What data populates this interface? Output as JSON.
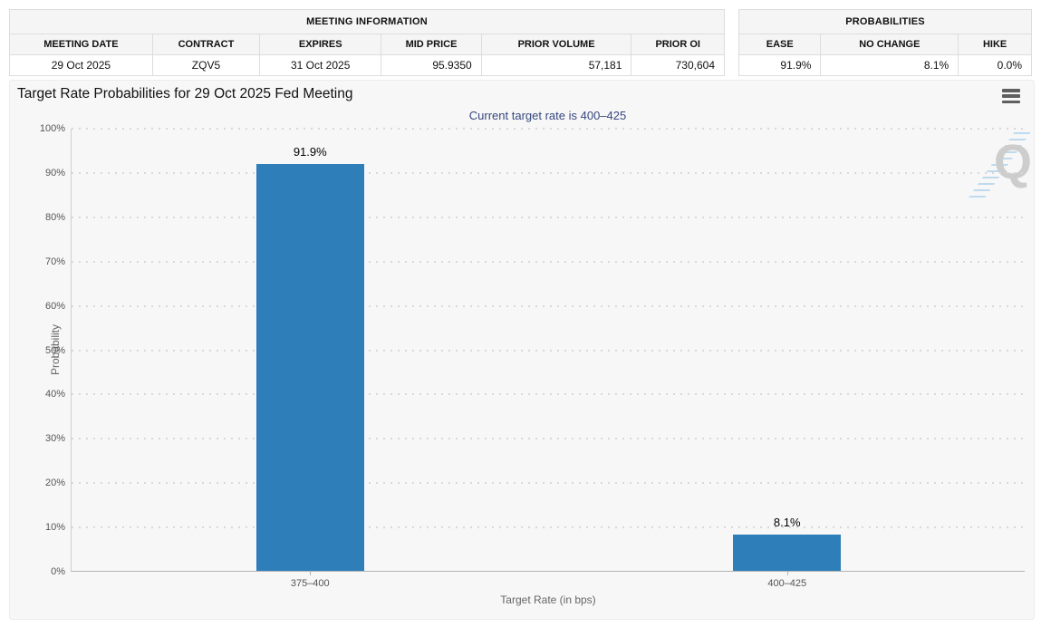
{
  "meeting_information": {
    "title": "MEETING INFORMATION",
    "columns": [
      "MEETING DATE",
      "CONTRACT",
      "EXPIRES",
      "MID PRICE",
      "PRIOR VOLUME",
      "PRIOR OI"
    ],
    "row": {
      "meeting_date": "29 Oct 2025",
      "contract": "ZQV5",
      "expires": "31 Oct 2025",
      "mid_price": "95.9350",
      "prior_volume": "57,181",
      "prior_oi": "730,604"
    }
  },
  "probabilities": {
    "title": "PROBABILITIES",
    "columns": [
      "EASE",
      "NO CHANGE",
      "HIKE"
    ],
    "row": {
      "ease": "91.9%",
      "no_change": "8.1%",
      "hike": "0.0%"
    }
  },
  "chart_data": {
    "type": "bar",
    "title": "Target Rate Probabilities for 29 Oct 2025 Fed Meeting",
    "subtitle": "Current target rate is 400–425",
    "categories": [
      "375–400",
      "400–425"
    ],
    "values": [
      91.9,
      8.1
    ],
    "value_labels": [
      "91.9%",
      "8.1%"
    ],
    "xlabel": "Target Rate (in bps)",
    "ylabel": "Probability",
    "ylim": [
      0,
      100
    ],
    "ytick_labels": [
      "0%",
      "10%",
      "20%",
      "30%",
      "40%",
      "50%",
      "60%",
      "70%",
      "80%",
      "90%",
      "100%"
    ],
    "bar_color": "#2e7eb9",
    "grid": "dotted-horizontal",
    "legend": "none"
  },
  "watermark_letter": "Q",
  "colors": {
    "bar": "#2e7eb9",
    "panel_background": "#f7f7f7",
    "table_header_background": "#f5f5f5",
    "subtitle_text": "#36477e"
  }
}
